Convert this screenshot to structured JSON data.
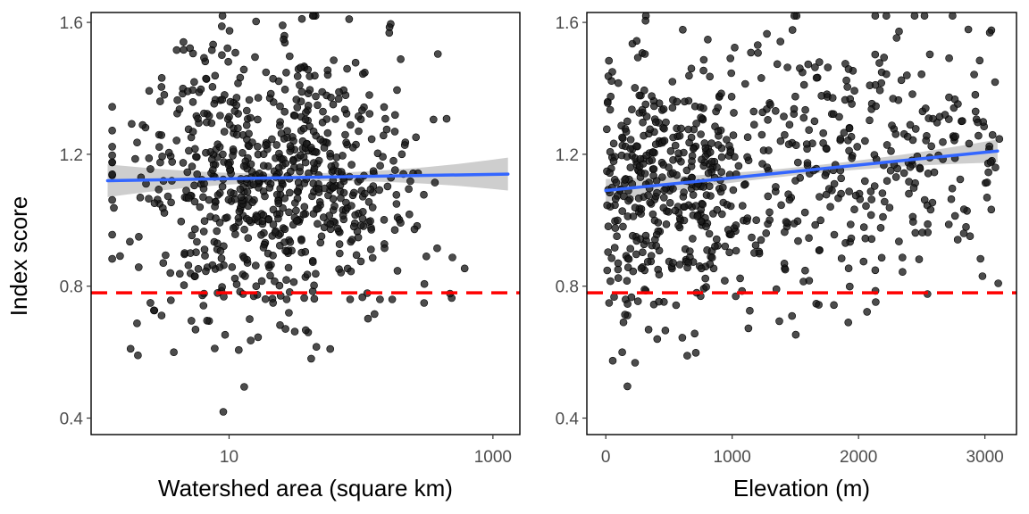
{
  "figure": {
    "shared_ylabel": "Index score",
    "colors": {
      "points": "#1a1a1a",
      "trend": "#3366ff",
      "ribbon": "#bdbdbd",
      "threshold": "#ff0000"
    }
  },
  "chart_data": [
    {
      "type": "scatter",
      "title": "",
      "xlabel": "Watershed area (square km)",
      "ylabel": "Index score",
      "x_scale": "log10",
      "xlim": [
        0.9,
        1600
      ],
      "ylim": [
        0.35,
        1.63
      ],
      "x_ticks": [
        10,
        1000
      ],
      "x_tick_labels": [
        "10",
        "1000"
      ],
      "y_ticks": [
        0.4,
        0.8,
        1.2,
        1.6
      ],
      "y_tick_labels": [
        "0.4",
        "0.8",
        "1.2",
        "1.6"
      ],
      "grid": false,
      "threshold_line": {
        "y": 0.78,
        "style": "dashed",
        "color": "#ff0000"
      },
      "trend": {
        "method": "linear",
        "x_range": [
          1.2,
          1300
        ],
        "y_start": 1.12,
        "y_end": 1.14,
        "ci_halfwidth_ends": 0.05,
        "ci_halfwidth_mid": 0.012
      },
      "n_points": 760,
      "center_x": 20,
      "spread_x_log10": 0.55,
      "center_y": 1.12,
      "spread_y": 0.2,
      "notes": "Dense point cloud of ~760 watersheds centered near 10–100 km2, index mostly 0.8–1.5."
    },
    {
      "type": "scatter",
      "title": "",
      "xlabel": "Elevation (m)",
      "ylabel": "Index score",
      "x_scale": "linear",
      "xlim": [
        -150,
        3250
      ],
      "ylim": [
        0.35,
        1.63
      ],
      "x_ticks": [
        0,
        1000,
        2000,
        3000
      ],
      "x_tick_labels": [
        "0",
        "1000",
        "2000",
        "3000"
      ],
      "y_ticks": [
        0.4,
        0.8,
        1.2,
        1.6
      ],
      "y_tick_labels": [
        "0.4",
        "0.8",
        "1.2",
        "1.6"
      ],
      "grid": false,
      "threshold_line": {
        "y": 0.78,
        "style": "dashed",
        "color": "#ff0000"
      },
      "trend": {
        "method": "linear",
        "x_range": [
          0,
          3100
        ],
        "y_start": 1.09,
        "y_end": 1.21,
        "ci_halfwidth_ends": 0.035,
        "ci_halfwidth_mid": 0.012
      },
      "n_points": 760,
      "notes": "Points concentrated at low elevation (0–1000 m) with a slight upward linear trend."
    }
  ]
}
